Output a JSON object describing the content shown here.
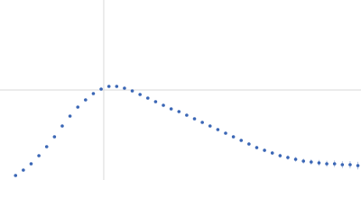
{
  "chart_data": {
    "type": "scatter",
    "x": [
      0.15,
      0.225,
      0.3,
      0.375,
      0.45,
      0.525,
      0.6,
      0.675,
      0.75,
      0.825,
      0.9,
      0.975,
      1.05,
      1.125,
      1.2,
      1.275,
      1.35,
      1.425,
      1.5,
      1.575,
      1.65,
      1.725,
      1.8,
      1.875,
      1.95,
      2.025,
      2.1,
      2.175,
      2.25,
      2.325,
      2.4,
      2.475,
      2.55,
      2.625,
      2.7,
      2.775,
      2.85,
      2.925,
      3.0,
      3.075,
      3.15,
      3.225,
      3.3,
      3.375,
      3.45
    ],
    "series": [
      {
        "color": "#3a66b5",
        "values": [
          0.05,
          0.11,
          0.18,
          0.27,
          0.37,
          0.48,
          0.6,
          0.71,
          0.81,
          0.89,
          0.96,
          1.01,
          1.04,
          1.04,
          1.02,
          0.99,
          0.95,
          0.91,
          0.87,
          0.83,
          0.79,
          0.76,
          0.72,
          0.68,
          0.64,
          0.6,
          0.56,
          0.52,
          0.48,
          0.44,
          0.4,
          0.36,
          0.33,
          0.3,
          0.27,
          0.25,
          0.23,
          0.21,
          0.2,
          0.19,
          0.18,
          0.18,
          0.17,
          0.17,
          0.16
        ],
        "errors": [
          0.005,
          0.005,
          0.005,
          0.005,
          0.005,
          0.005,
          0.006,
          0.006,
          0.006,
          0.006,
          0.007,
          0.007,
          0.007,
          0.008,
          0.008,
          0.008,
          0.009,
          0.009,
          0.01,
          0.01,
          0.011,
          0.011,
          0.012,
          0.012,
          0.013,
          0.013,
          0.014,
          0.015,
          0.016,
          0.017,
          0.018,
          0.019,
          0.02,
          0.021,
          0.022,
          0.024,
          0.026,
          0.028,
          0.03,
          0.032,
          0.034,
          0.036,
          0.038,
          0.04,
          0.042
        ]
      }
    ],
    "xlim": [
      0,
      3.48
    ],
    "ylim": [
      0,
      2
    ],
    "xticks": [
      1
    ],
    "yticks": [
      1
    ],
    "grid": true
  }
}
